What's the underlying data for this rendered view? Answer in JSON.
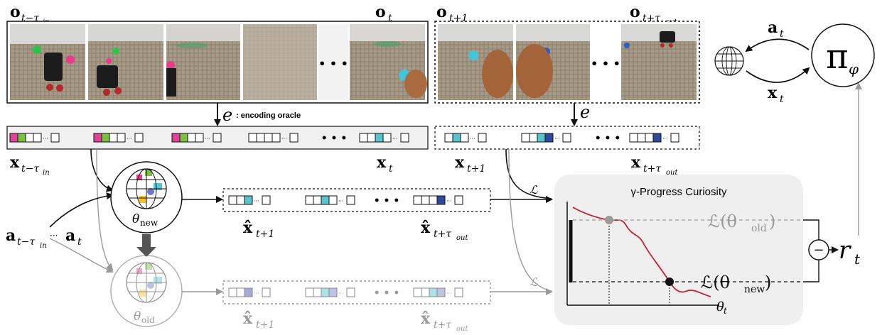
{
  "labels": {
    "o_past": "o",
    "o_past_sub": "t−τ",
    "o_past_subsub": "in",
    "o_now": "o",
    "o_now_sub": "t",
    "o_next": "o",
    "o_next_sub": "t+1",
    "o_future": "o",
    "o_future_sub": "t+τ",
    "o_future_subsub": "out",
    "encoder_symbol": "e",
    "encoding_oracle": ": encoding oracle",
    "encoder_symbol_right": "e",
    "x_past": "x",
    "x_past_sub": "t−τ",
    "x_past_subsub": "in",
    "x_now": "x",
    "x_now_sub": "t",
    "x_next": "x",
    "x_next_sub": "t+1",
    "x_future": "x",
    "x_future_sub": "t+τ",
    "x_future_subsub": "out",
    "theta_new": "θ",
    "theta_new_sub": "new",
    "theta_old": "θ",
    "theta_old_sub": "old",
    "actions": "a",
    "actions_sub": "t−τ",
    "actions_subsub": "in",
    "actions_dots": "···",
    "actions_end": "a",
    "actions_end_sub": "t",
    "xhat_next": "x̂",
    "xhat_next_sub": "t+1",
    "xhat_future": "x̂",
    "xhat_future_sub": "t+τ",
    "xhat_future_subsub": "out",
    "loss_symbol": "ℒ",
    "loss_symbol_old": "ℒ",
    "curiosity_title": "γ-Progress Curiosity",
    "loss_old": "ℒ(θ",
    "loss_old_sub": "old",
    "loss_old_close": ")",
    "loss_new": "ℒ(θ",
    "loss_new_sub": "new",
    "loss_new_close": ")",
    "theta_axis": "θ",
    "theta_axis_sub": "t",
    "minus": "−",
    "reward": "r",
    "reward_sub": "t",
    "policy": "π",
    "policy_sub": "φ",
    "action_out": "a",
    "action_out_sub": "t",
    "obs_in": "x",
    "obs_in_sub": "t",
    "ellipsis": "• • •"
  },
  "colors": {
    "magenta": "#e0439a",
    "green": "#7ac143",
    "cyan": "#56c5d0",
    "navy": "#2e4a9e",
    "red": "#c8202f",
    "gray": "#9a9a9a",
    "panel": "#f0f0f0"
  },
  "icons": {
    "world_model": "globe-icon",
    "environment": "globe-icon"
  }
}
